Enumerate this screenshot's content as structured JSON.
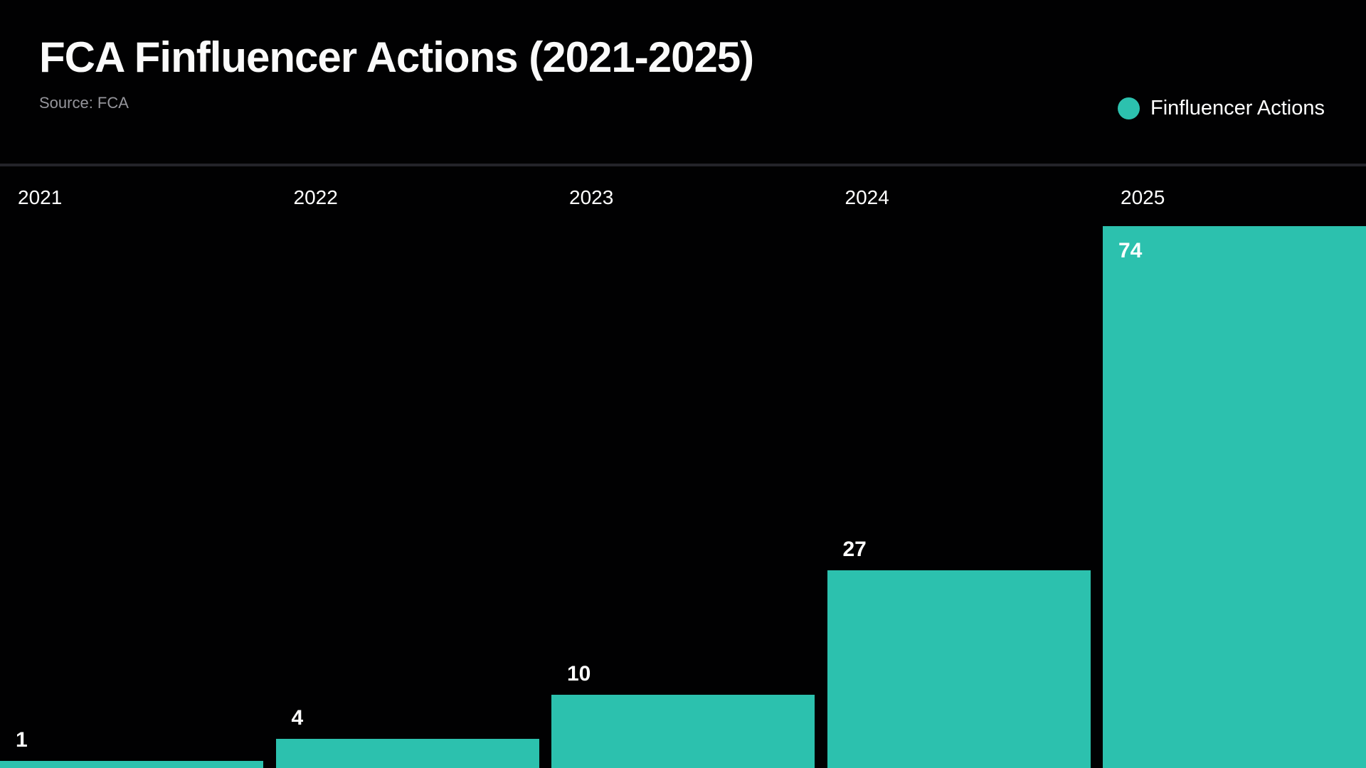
{
  "header": {
    "title": "FCA Finfluencer Actions (2021-2025)",
    "source": "Source: FCA"
  },
  "legend": {
    "label": "Finfluencer Actions",
    "color": "#2cc1ae"
  },
  "chart_data": {
    "type": "bar",
    "title": "FCA Finfluencer Actions (2021-2025)",
    "source_note": "Source: FCA",
    "categories": [
      "2021",
      "2022",
      "2023",
      "2024",
      "2025"
    ],
    "series": [
      {
        "name": "Finfluencer Actions",
        "values": [
          1,
          4,
          10,
          27,
          74
        ]
      }
    ],
    "bar_color": "#2cc1ae",
    "background_color": "#010102",
    "text_color": "#ffffff",
    "grid": "off",
    "value_labels": "shown",
    "category_label_position": "top",
    "legend_position": "top-right"
  }
}
